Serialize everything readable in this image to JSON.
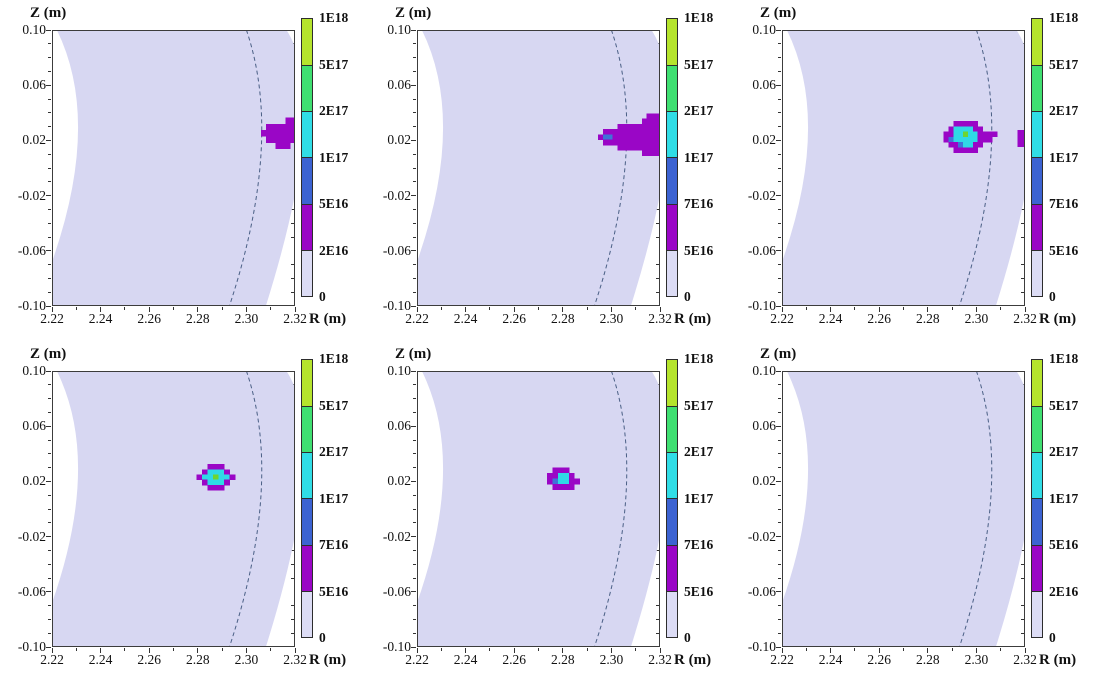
{
  "figure": {
    "description": "Six-panel R-Z cross-section density heatmap sequence",
    "grid": {
      "rows": 2,
      "cols": 3
    }
  },
  "chart_data": {
    "type": "heatmap",
    "title": "",
    "xlabel": "R (m)",
    "ylabel": "Z (m)",
    "xlim": [
      2.22,
      2.32
    ],
    "ylim": [
      -0.1,
      0.1
    ],
    "x_tick_values": [
      2.22,
      2.24,
      2.26,
      2.28,
      2.3,
      2.32
    ],
    "x_tick_labels": [
      "2.22",
      "2.24",
      "2.26",
      "2.28",
      "2.30",
      "2.32"
    ],
    "x_minor_tick_values": [
      2.23,
      2.25,
      2.27,
      2.29,
      2.31
    ],
    "y_tick_values": [
      0.1,
      0.06,
      0.02,
      -0.02,
      -0.06,
      -0.1
    ],
    "y_tick_labels": [
      "0.10",
      "0.06",
      "0.02",
      "-0.02",
      "-0.06",
      "-0.10"
    ],
    "y_minor_tick_values": [
      0.09,
      0.08,
      0.07,
      0.05,
      0.04,
      0.03,
      0.01,
      0.0,
      -0.01,
      -0.03,
      -0.04,
      -0.05,
      -0.07,
      -0.08,
      -0.09
    ],
    "colorbar": {
      "segment_colors_top_to_bottom": [
        "#b5e42d",
        "#3fdf71",
        "#30dde6",
        "#3c63d2",
        "#9a06c6",
        "#dcdcf5"
      ],
      "top_value": "1E18",
      "bottom_value": "0"
    },
    "cell_colors": {
      "P": "#9a06c6",
      "B": "#3f74d8",
      "C": "#2fd9e6",
      "G": "#6ed52f"
    },
    "plasma_band": {
      "fill": "#d7d7f2",
      "left_edge": {
        "top": {
          "Z": 0.1,
          "R": 2.222
        },
        "bulge": {
          "Z": 0.025,
          "R": 2.2307
        },
        "meets_left_frame_at_Z": -0.068
      },
      "right_edge": {
        "top": {
          "Z": 0.1,
          "R": 2.3165
        },
        "bulge": {
          "Z": 0.025,
          "R": 2.3235
        },
        "bottom": {
          "Z": -0.1,
          "R": 2.308
        }
      }
    },
    "dashed_curve": {
      "color": "#4a5f85",
      "points": [
        {
          "Z": 0.1,
          "R": 2.3
        },
        {
          "Z": 0.01,
          "R": 2.306
        },
        {
          "Z": -0.1,
          "R": 2.293
        }
      ]
    },
    "panels": [
      {
        "id": "top-left",
        "colorbar_tick_labels": [
          "1E18",
          "5E17",
          "2E17",
          "1E17",
          "5E16",
          "2E16",
          "0"
        ],
        "blobs": [
          {
            "r0": 2.306,
            "z_top": 0.0365,
            "dr": 0.002,
            "dz": 0.0045,
            "rows": [
              ".....PP",
              ".PPPPPP",
              "PPPPPPP",
              ".PPPPPP",
              "...PPP."
            ]
          }
        ]
      },
      {
        "id": "top-middle",
        "colorbar_tick_labels": [
          "1E18",
          "5E17",
          "2E17",
          "1E17",
          "7E16",
          "5E16",
          "0"
        ],
        "blobs": [
          {
            "r0": 2.2945,
            "z_top": 0.0395,
            "dr": 0.002,
            "dz": 0.0038,
            "rows": [
              "..........PPP",
              ".........PPPP",
              "....PPPPPPPPP",
              ".PPPPPPPPPPPP",
              "PBBPPPPPPPPPP",
              ".PPPPPPPPPPPP",
              "....PPPPPPPPP",
              ".........PPPP"
            ]
          }
        ]
      },
      {
        "id": "top-right",
        "colorbar_tick_labels": [
          "1E18",
          "5E17",
          "2E17",
          "1E17",
          "7E16",
          "5E16",
          "0"
        ],
        "blobs": [
          {
            "r0": 2.2865,
            "z_top": 0.034,
            "dr": 0.002,
            "dz": 0.0038,
            "rows": [
              "..PPPPP....",
              ".PCCCCPP...",
              "PPCCGCCPPPP",
              "PBCCCCCPPP.",
              ".PPBCCPP...",
              "..PPPPP...."
            ]
          },
          {
            "r0": 2.317,
            "z_top": 0.0275,
            "dr": 0.0015,
            "dz": 0.004,
            "rows": [
              "PP",
              "PP",
              "PP"
            ]
          }
        ]
      },
      {
        "id": "bottom-left",
        "colorbar_tick_labels": [
          "1E18",
          "5E17",
          "2E17",
          "1E17",
          "7E16",
          "5E16",
          "0"
        ],
        "blobs": [
          {
            "r0": 2.2795,
            "z_top": 0.0325,
            "dr": 0.00225,
            "dz": 0.00375,
            "rows": [
              "..PPP..",
              ".PCCCP.",
              "PCCGCCP",
              ".PCCCP.",
              "..PPP.."
            ]
          }
        ]
      },
      {
        "id": "bottom-middle",
        "colorbar_tick_labels": [
          "1E18",
          "5E17",
          "2E17",
          "1E17",
          "7E16",
          "5E16",
          "0"
        ],
        "blobs": [
          {
            "r0": 2.2735,
            "z_top": 0.03,
            "dr": 0.00225,
            "dz": 0.004,
            "rows": [
              ".PPP..",
              "PPCCP.",
              "PBCCPP",
              ".PPPP."
            ]
          }
        ]
      },
      {
        "id": "bottom-right",
        "colorbar_tick_labels": [
          "1E18",
          "5E17",
          "2E17",
          "1E17",
          "5E16",
          "2E16",
          "0"
        ],
        "blobs": []
      }
    ]
  }
}
